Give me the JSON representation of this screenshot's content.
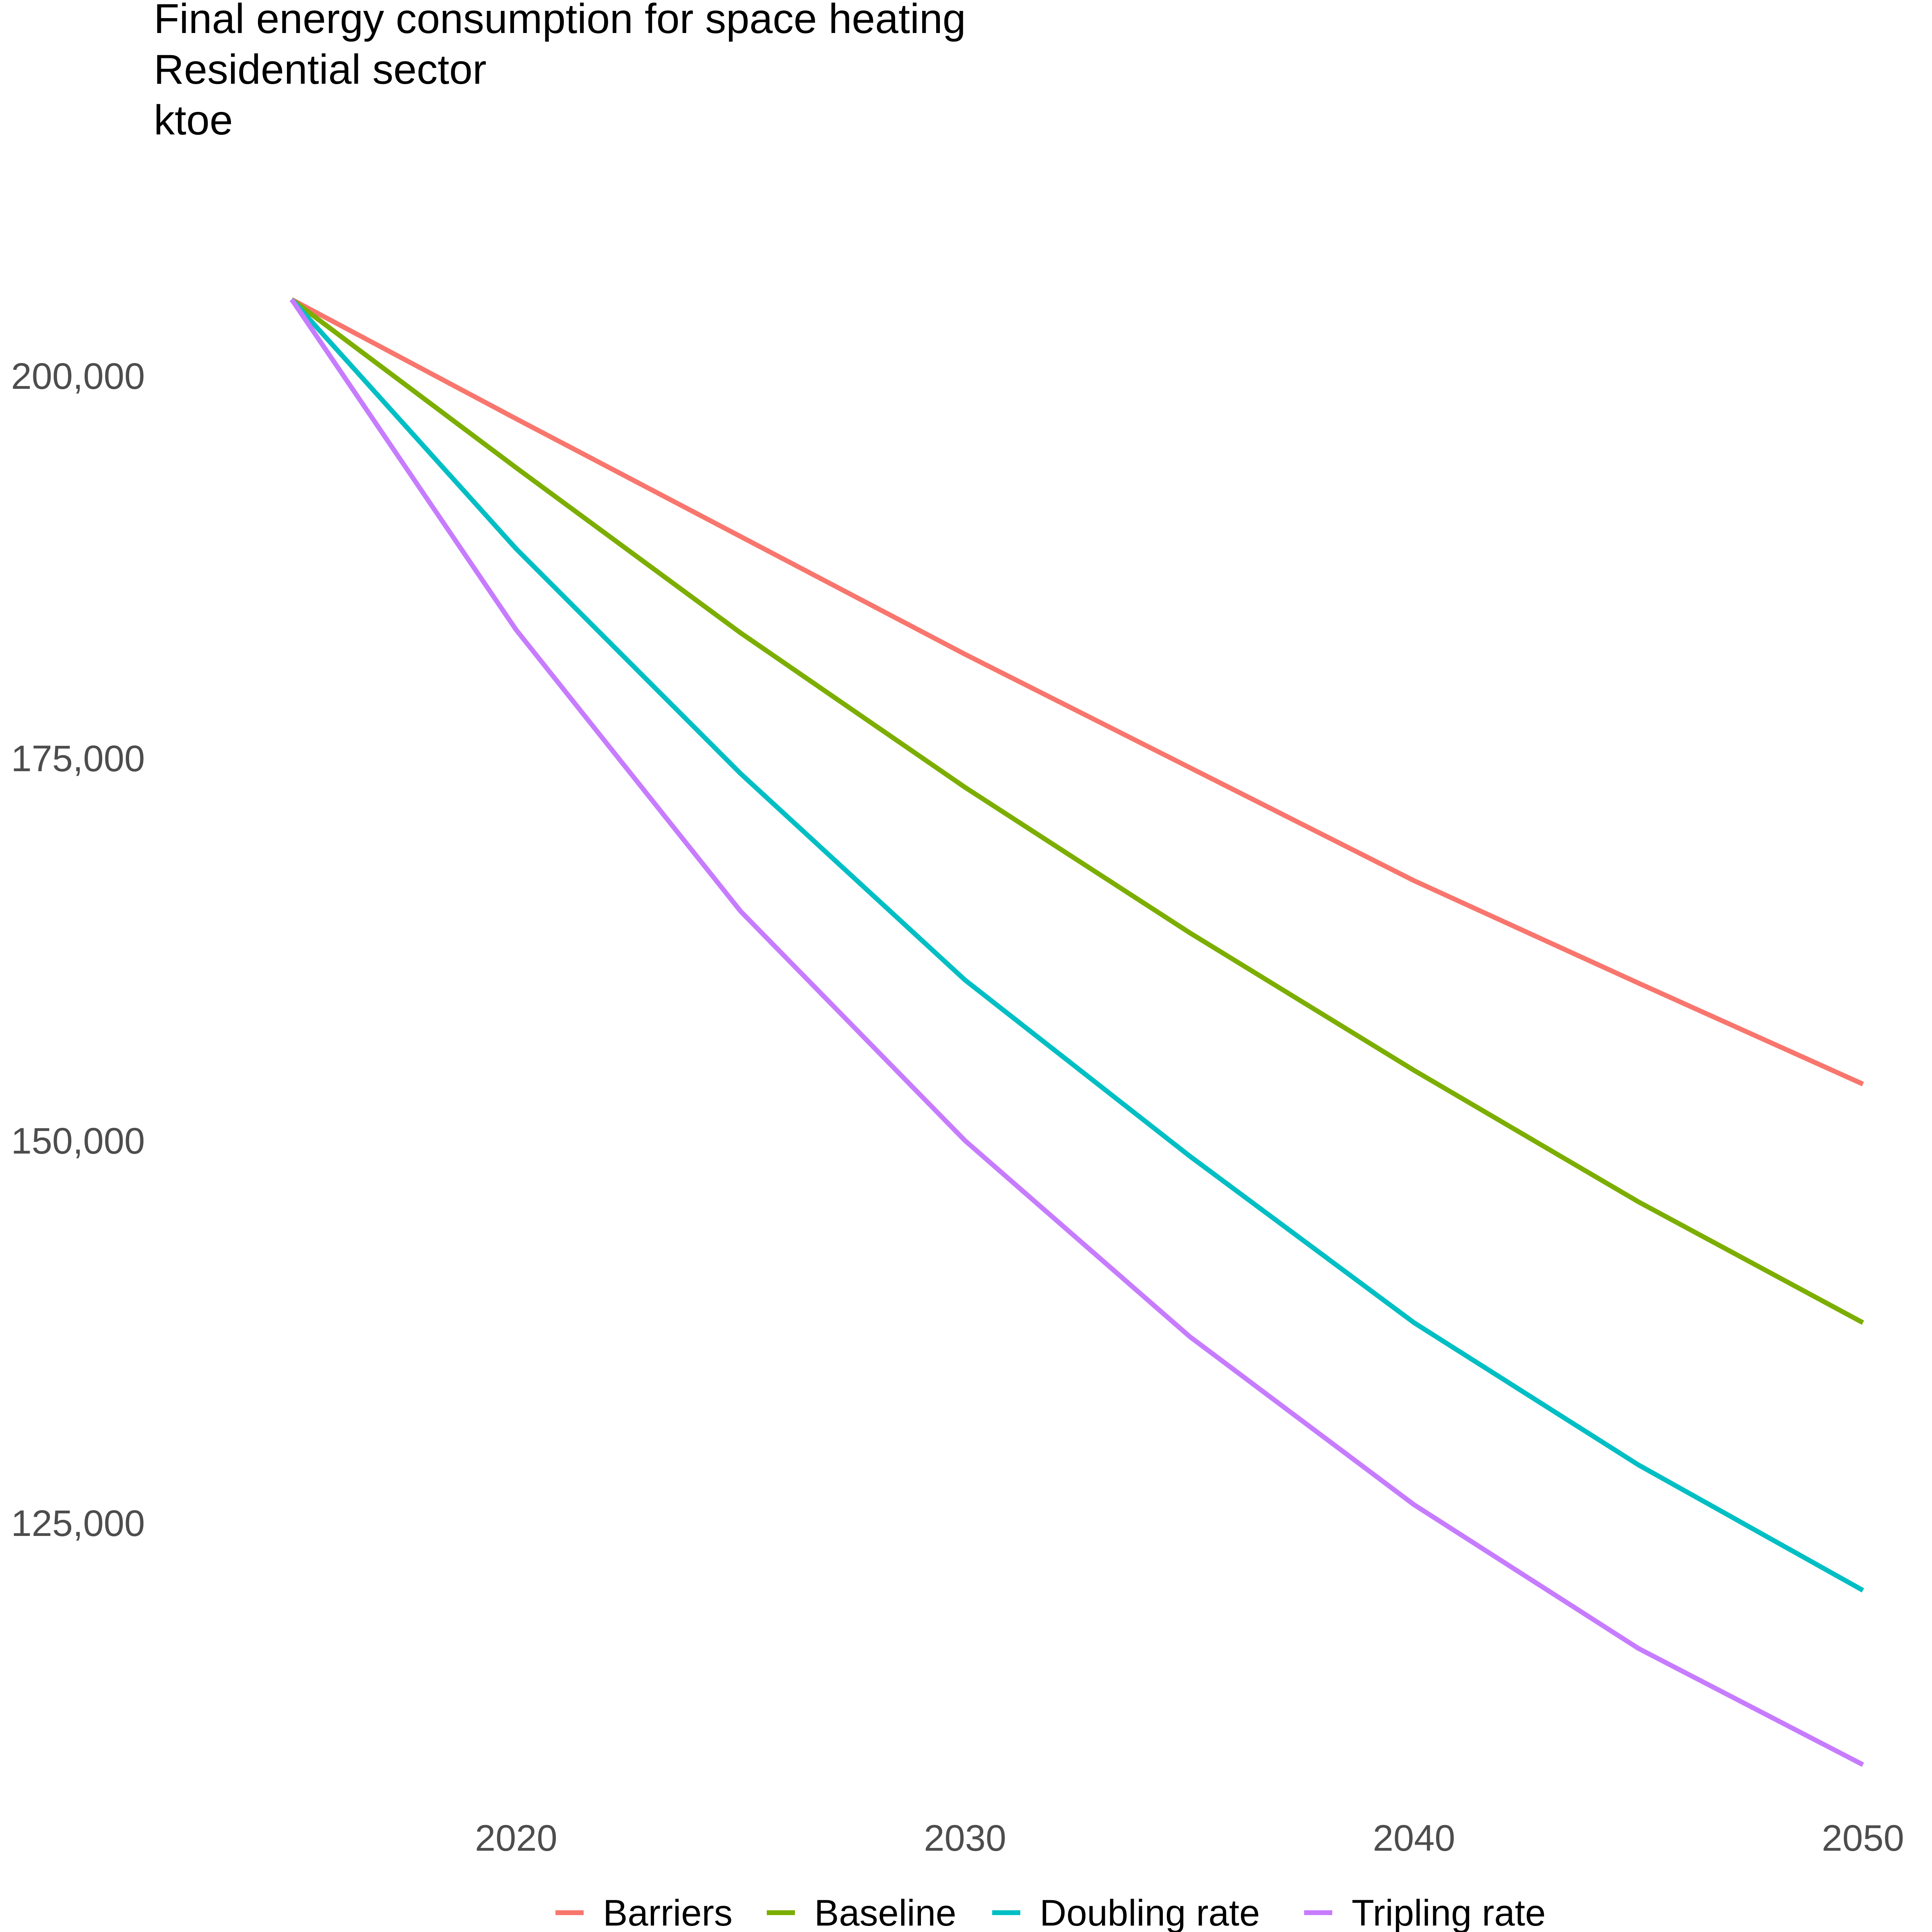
{
  "chart_data": {
    "type": "line",
    "title": "Final energy consumption for space heating",
    "subtitle": "Residential sector",
    "unit_label": "ktoe",
    "xlabel": "",
    "ylabel": "",
    "x": [
      2015,
      2020,
      2025,
      2030,
      2035,
      2040,
      2045,
      2050
    ],
    "xlim": [
      2012,
      2051
    ],
    "ylim": [
      108000,
      213000
    ],
    "x_ticks": [
      2020,
      2030,
      2040,
      2050
    ],
    "x_tick_labels": [
      "2020",
      "2030",
      "2040",
      "2050"
    ],
    "y_ticks": [
      125000,
      150000,
      175000,
      200000
    ],
    "y_tick_labels": [
      "125,000",
      "150,000",
      "175,000",
      "200,000"
    ],
    "grid": false,
    "legend_position": "bottom",
    "series": [
      {
        "name": "Barriers",
        "color": "#F8766D",
        "values": [
          205000,
          197200,
          189500,
          181800,
          174400,
          167000,
          160300,
          153700
        ]
      },
      {
        "name": "Baseline",
        "color": "#7CAE00",
        "values": [
          205000,
          194000,
          183200,
          173100,
          163600,
          154600,
          146000,
          138100
        ]
      },
      {
        "name": "Doubling rate",
        "color": "#00BFC4",
        "values": [
          205000,
          188700,
          174000,
          160500,
          149000,
          138100,
          128800,
          120600
        ]
      },
      {
        "name": "Tripling rate",
        "color": "#C77CFF",
        "values": [
          205000,
          183400,
          165000,
          150000,
          137200,
          126200,
          116800,
          109200
        ]
      }
    ]
  }
}
